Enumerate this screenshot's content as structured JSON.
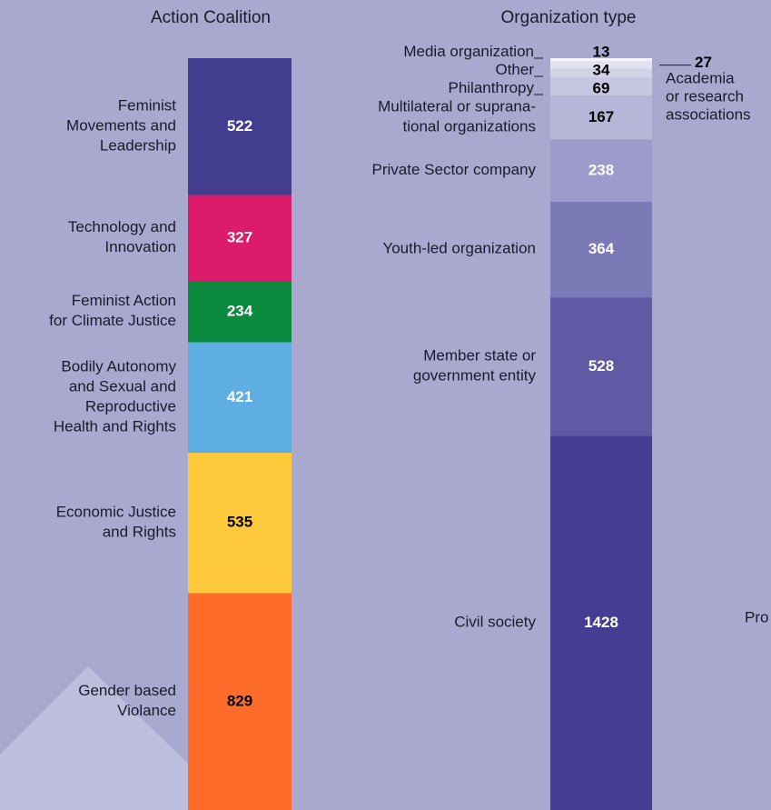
{
  "chart_data": [
    {
      "type": "stacked-column",
      "title": "Action Coalition",
      "series": [
        {
          "name": "Feminist\nMovements and\nLeadership",
          "color": "#433d90",
          "label_color": "#ffffff",
          "values": [
            522
          ]
        },
        {
          "name": "Technology and\nInnovation",
          "color": "#dd1b6b",
          "label_color": "#ffffff",
          "values": [
            327
          ]
        },
        {
          "name": "Feminist Action\nfor Climate Justice",
          "color": "#0b8a3f",
          "label_color": "#ffffff",
          "values": [
            234
          ]
        },
        {
          "name": "Bodily Autonomy\nand Sexual and\nReproductive\nHealth and Rights",
          "color": "#5eaee3",
          "label_color": "#ffffff",
          "values": [
            421
          ]
        },
        {
          "name": "Economic Justice\nand Rights",
          "color": "#ffc93c",
          "label_color": "#000000",
          "values": [
            535
          ]
        },
        {
          "name": "Gender based\nViolance",
          "color": "#fd6c2a",
          "label_color": "#000000",
          "values": [
            829
          ]
        }
      ]
    },
    {
      "type": "stacked-column",
      "title": "Organization type",
      "series": [
        {
          "name": "Media organization",
          "color": "#f4f4fa",
          "label_color": "#000000",
          "values": [
            13
          ]
        },
        {
          "name": "Academia\nor research\nassociations",
          "color": "#e2e2f0",
          "label_color": "#000000",
          "label_side": "right",
          "values": [
            27
          ]
        },
        {
          "name": "Other",
          "color": "#d3d3e8",
          "label_color": "#000000",
          "values": [
            34
          ]
        },
        {
          "name": "Philanthropy",
          "color": "#c6c6e0",
          "label_color": "#000000",
          "values": [
            69
          ]
        },
        {
          "name": "Multilateral or suprana-\ntional organizations",
          "color": "#b6b6d9",
          "label_color": "#000000",
          "values": [
            167
          ]
        },
        {
          "name": "Private Sector company",
          "color": "#9d9bcb",
          "label_color": "#ffffff",
          "values": [
            238
          ]
        },
        {
          "name": "Youth-led organization",
          "color": "#7c79b7",
          "label_color": "#ffffff",
          "values": [
            364
          ]
        },
        {
          "name": "Member state or\ngovernment entity",
          "color": "#5f5aa3",
          "label_color": "#ffffff",
          "values": [
            528
          ]
        },
        {
          "name": "Civil society",
          "color": "#443d91",
          "label_color": "#ffffff",
          "values": [
            1428
          ]
        }
      ]
    }
  ],
  "clipped_label": "Pro"
}
